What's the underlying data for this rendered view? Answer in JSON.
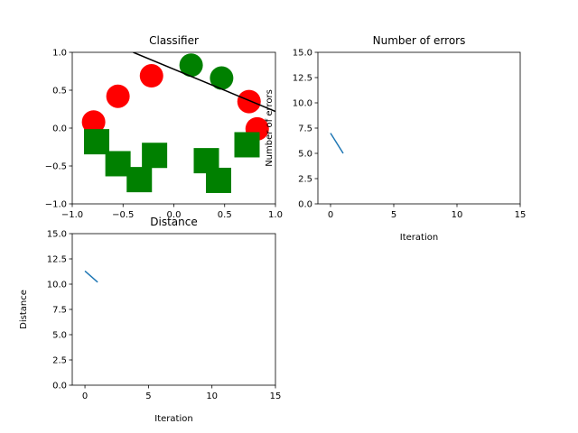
{
  "chart_data": [
    {
      "type": "scatter",
      "title": "Classifier",
      "xlabel": "",
      "ylabel": "",
      "xlim": [
        -1.0,
        1.0
      ],
      "ylim": [
        -1.0,
        1.0
      ],
      "xticks": [
        "−1.0",
        "−0.5",
        "0.0",
        "0.5",
        "1.0"
      ],
      "yticks": [
        "−1.0",
        "−0.5",
        "0.0",
        "0.5",
        "1.0"
      ],
      "grid": false,
      "series": [
        {
          "marker": "circle",
          "color": "#ff0000",
          "points": [
            [
              -0.79,
              0.08
            ],
            [
              -0.55,
              0.42
            ],
            [
              -0.22,
              0.69
            ],
            [
              0.74,
              0.35
            ],
            [
              0.82,
              -0.01
            ]
          ]
        },
        {
          "marker": "circle",
          "color": "#008000",
          "points": [
            [
              0.17,
              0.83
            ],
            [
              0.47,
              0.66
            ]
          ]
        },
        {
          "marker": "square",
          "color": "#008000",
          "points": [
            [
              -0.76,
              -0.18
            ],
            [
              -0.55,
              -0.47
            ],
            [
              -0.34,
              -0.68
            ],
            [
              -0.19,
              -0.36
            ],
            [
              0.32,
              -0.43
            ],
            [
              0.44,
              -0.69
            ],
            [
              0.72,
              -0.22
            ]
          ]
        }
      ],
      "boundary_line": {
        "color": "#000000",
        "points": [
          [
            -0.4,
            1.0
          ],
          [
            1.0,
            0.22
          ]
        ]
      }
    },
    {
      "type": "line",
      "title": "Number of errors",
      "xlabel": "Iteration",
      "ylabel": "Number of errors",
      "xlim": [
        -1,
        15
      ],
      "ylim": [
        0,
        15
      ],
      "xticks": [
        "0",
        "5",
        "10",
        "15"
      ],
      "yticks": [
        "0.0",
        "2.5",
        "5.0",
        "7.5",
        "10.0",
        "12.5",
        "15.0"
      ],
      "grid": false,
      "series": [
        {
          "color": "#1f77b4",
          "x": [
            0,
            1
          ],
          "values": [
            7,
            5
          ]
        }
      ]
    },
    {
      "type": "line",
      "title": "Distance",
      "xlabel": "Iteration",
      "ylabel": "Distance",
      "xlim": [
        -1,
        15
      ],
      "ylim": [
        0,
        15
      ],
      "xticks": [
        "0",
        "5",
        "10",
        "15"
      ],
      "yticks": [
        "0.0",
        "2.5",
        "5.0",
        "7.5",
        "10.0",
        "12.5",
        "15.0"
      ],
      "grid": false,
      "series": [
        {
          "color": "#1f77b4",
          "x": [
            0,
            1
          ],
          "values": [
            11.3,
            10.2
          ]
        }
      ]
    }
  ]
}
